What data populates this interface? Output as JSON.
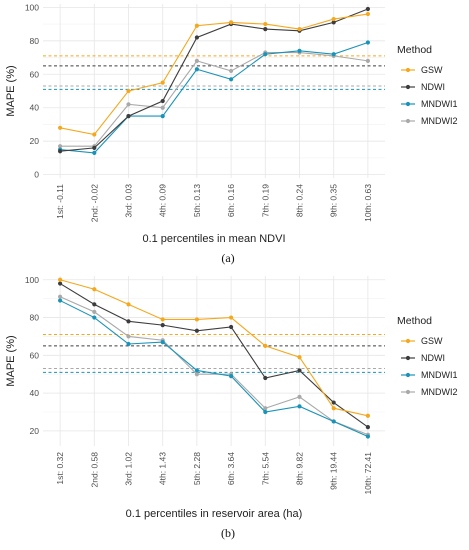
{
  "figure": {
    "panel_a_label": "(a)",
    "panel_b_label": "(b)"
  },
  "chart_data": [
    {
      "type": "line",
      "panel": "a",
      "xlabel": "0.1 percentiles in mean NDVI",
      "ylabel": "MAPE (%)",
      "ylim": [
        -2,
        102
      ],
      "yticks": [
        0,
        20,
        40,
        60,
        80,
        100
      ],
      "grid": true,
      "legend_title": "Method",
      "legend_position": "right",
      "categories": [
        "1st: -0.11",
        "2nd: -0.02",
        "3rd: 0.03",
        "4th: 0.09",
        "5th: 0.13",
        "6th: 0.16",
        "7th: 0.19",
        "8th: 0.24",
        "9th: 0.35",
        "10th: 0.63"
      ],
      "series": [
        {
          "name": "GSW",
          "color": "#F4A81D",
          "values": [
            28,
            24,
            50,
            55,
            89,
            91,
            90,
            87,
            93,
            96
          ],
          "mean": 71
        },
        {
          "name": "NDWI",
          "color": "#3D3D3D",
          "values": [
            14,
            16,
            35,
            44,
            82,
            90,
            87,
            86,
            91,
            99
          ],
          "mean": 65
        },
        {
          "name": "MNDWI1",
          "color": "#1A93B8",
          "values": [
            15,
            13,
            35,
            35,
            63,
            57,
            72,
            74,
            72,
            79
          ],
          "mean": 51
        },
        {
          "name": "MNDWI2",
          "color": "#A9A9A9",
          "values": [
            17,
            17,
            42,
            40,
            68,
            62,
            73,
            73,
            71,
            68
          ],
          "mean": 53
        }
      ]
    },
    {
      "type": "line",
      "panel": "b",
      "xlabel": "0.1 percentiles in reservoir area (ha)",
      "ylabel": "MAPE (%)",
      "ylim": [
        12,
        102
      ],
      "yticks": [
        20,
        40,
        60,
        80,
        100
      ],
      "grid": true,
      "legend_title": "Method",
      "legend_position": "right",
      "categories": [
        "1st: 0.32",
        "2nd: 0.58",
        "3rd: 1.02",
        "4th: 1.43",
        "5th: 2.28",
        "6th: 3.64",
        "7th: 5.54",
        "8th: 9.82",
        "9th: 19.44",
        "10th: 72.41"
      ],
      "series": [
        {
          "name": "GSW",
          "color": "#F4A81D",
          "values": [
            100,
            95,
            87,
            79,
            79,
            80,
            65,
            59,
            32,
            28
          ],
          "mean": 71
        },
        {
          "name": "NDWI",
          "color": "#3D3D3D",
          "values": [
            98,
            87,
            78,
            76,
            73,
            75,
            48,
            52,
            35,
            22
          ],
          "mean": 65
        },
        {
          "name": "MNDWI1",
          "color": "#1A93B8",
          "values": [
            89,
            80,
            66,
            67,
            52,
            49,
            30,
            33,
            25,
            17
          ],
          "mean": 51
        },
        {
          "name": "MNDWI2",
          "color": "#A9A9A9",
          "values": [
            91,
            83,
            70,
            68,
            50,
            50,
            32,
            38,
            25,
            18
          ],
          "mean": 53
        }
      ]
    }
  ]
}
